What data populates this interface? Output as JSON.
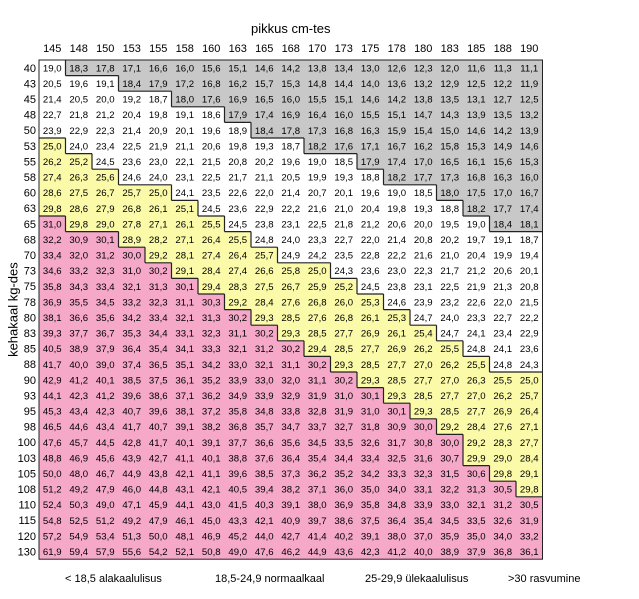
{
  "chart_data": {
    "type": "heatmap",
    "xlabel": "pikkus cm-tes",
    "ylabel": "kehakaal kg-des",
    "heights": [
      "145",
      "148",
      "150",
      "153",
      "155",
      "158",
      "160",
      "163",
      "165",
      "168",
      "170",
      "173",
      "175",
      "178",
      "180",
      "183",
      "185",
      "188",
      "190"
    ],
    "weights": [
      "40",
      "43",
      "45",
      "48",
      "50",
      "53",
      "55",
      "58",
      "60",
      "63",
      "65",
      "68",
      "70",
      "73",
      "75",
      "78",
      "80",
      "83",
      "85",
      "88",
      "90",
      "93",
      "95",
      "98",
      "100",
      "103",
      "105",
      "108",
      "110",
      "115",
      "120",
      "130"
    ],
    "bmi": [
      [
        "19,0",
        "18,3",
        "17,8",
        "17,1",
        "16,6",
        "16,0",
        "15,6",
        "15,1",
        "14,6",
        "14,2",
        "13,8",
        "13,4",
        "13,0",
        "12,6",
        "12,3",
        "12,0",
        "11,6",
        "11,3",
        "11,1"
      ],
      [
        "20,5",
        "19,6",
        "19,1",
        "18,4",
        "17,9",
        "17,2",
        "16,8",
        "16,2",
        "15,7",
        "15,3",
        "14,8",
        "14,4",
        "14,0",
        "13,6",
        "13,2",
        "12,9",
        "12,5",
        "12,2",
        "11,9"
      ],
      [
        "21,4",
        "20,5",
        "20,0",
        "19,2",
        "18,7",
        "18,0",
        "17,6",
        "16,9",
        "16,5",
        "16,0",
        "15,5",
        "15,1",
        "14,6",
        "14,2",
        "13,8",
        "13,5",
        "13,1",
        "12,7",
        "12,5"
      ],
      [
        "22,7",
        "21,8",
        "21,2",
        "20,4",
        "19,8",
        "19,1",
        "18,6",
        "17,9",
        "17,4",
        "16,9",
        "16,4",
        "16,0",
        "15,5",
        "15,1",
        "14,7",
        "14,3",
        "13,9",
        "13,5",
        "13,2"
      ],
      [
        "23,9",
        "22,9",
        "22,3",
        "21,4",
        "20,9",
        "20,1",
        "19,6",
        "18,9",
        "18,4",
        "17,8",
        "17,3",
        "16,8",
        "16,3",
        "15,9",
        "15,4",
        "15,0",
        "14,6",
        "14,2",
        "13,9"
      ],
      [
        "25,0",
        "24,0",
        "23,4",
        "22,5",
        "21,9",
        "21,1",
        "20,6",
        "19,8",
        "19,3",
        "18,7",
        "18,2",
        "17,6",
        "17,1",
        "16,7",
        "16,2",
        "15,8",
        "15,3",
        "14,9",
        "14,6"
      ],
      [
        "26,2",
        "25,2",
        "24,5",
        "23,6",
        "23,0",
        "22,1",
        "21,5",
        "20,8",
        "20,2",
        "19,6",
        "19,0",
        "18,5",
        "17,9",
        "17,4",
        "17,0",
        "16,5",
        "16,1",
        "15,6",
        "15,3"
      ],
      [
        "27,4",
        "26,3",
        "25,6",
        "24,6",
        "24,0",
        "23,1",
        "22,5",
        "21,7",
        "21,1",
        "20,5",
        "19,9",
        "19,3",
        "18,8",
        "18,2",
        "17,7",
        "17,3",
        "16,8",
        "16,3",
        "16,0"
      ],
      [
        "28,6",
        "27,5",
        "26,7",
        "25,7",
        "25,0",
        "24,1",
        "23,5",
        "22,6",
        "22,0",
        "21,4",
        "20,7",
        "20,1",
        "19,6",
        "19,0",
        "18,5",
        "18,0",
        "17,5",
        "17,0",
        "16,7"
      ],
      [
        "29,8",
        "28,6",
        "27,9",
        "26,8",
        "26,1",
        "25,1",
        "24,5",
        "23,6",
        "22,9",
        "22,2",
        "21,6",
        "21,0",
        "20,4",
        "19,8",
        "19,3",
        "18,8",
        "18,2",
        "17,7",
        "17,4"
      ],
      [
        "31,0",
        "29,8",
        "29,0",
        "27,8",
        "27,1",
        "26,1",
        "25,5",
        "24,5",
        "23,8",
        "23,1",
        "22,5",
        "21,8",
        "21,2",
        "20,6",
        "20,0",
        "19,5",
        "19,0",
        "18,4",
        "18,1"
      ],
      [
        "32,2",
        "30,9",
        "30,1",
        "28,9",
        "28,2",
        "27,1",
        "26,4",
        "25,5",
        "24,8",
        "24,0",
        "23,3",
        "22,7",
        "22,0",
        "21,4",
        "20,8",
        "20,2",
        "19,7",
        "19,1",
        "18,7"
      ],
      [
        "33,4",
        "32,0",
        "31,2",
        "30,0",
        "29,2",
        "28,1",
        "27,4",
        "26,4",
        "25,7",
        "24,9",
        "24,2",
        "23,5",
        "22,8",
        "22,2",
        "21,6",
        "21,0",
        "20,4",
        "19,9",
        "19,4"
      ],
      [
        "34,6",
        "33,2",
        "32,3",
        "31,0",
        "30,2",
        "29,1",
        "28,4",
        "27,4",
        "26,6",
        "25,8",
        "25,0",
        "24,3",
        "23,6",
        "23,0",
        "22,3",
        "21,7",
        "21,2",
        "20,6",
        "20,1"
      ],
      [
        "35,8",
        "34,3",
        "33,4",
        "32,1",
        "31,3",
        "30,1",
        "29,4",
        "28,3",
        "27,5",
        "26,7",
        "25,9",
        "25,2",
        "24,5",
        "23,8",
        "23,1",
        "22,5",
        "21,9",
        "21,3",
        "20,8"
      ],
      [
        "36,9",
        "35,5",
        "34,5",
        "33,2",
        "32,3",
        "31,1",
        "30,3",
        "29,2",
        "28,4",
        "27,6",
        "26,8",
        "26,0",
        "25,3",
        "24,6",
        "23,9",
        "23,2",
        "22,6",
        "22,0",
        "21,5"
      ],
      [
        "38,1",
        "36,6",
        "35,6",
        "34,2",
        "33,4",
        "32,1",
        "31,3",
        "30,2",
        "29,3",
        "28,5",
        "27,6",
        "26,8",
        "26,1",
        "25,3",
        "24,7",
        "24,0",
        "23,3",
        "22,7",
        "22,2"
      ],
      [
        "39,3",
        "37,7",
        "36,7",
        "35,3",
        "34,4",
        "33,1",
        "32,3",
        "31,1",
        "30,2",
        "29,3",
        "28,5",
        "27,7",
        "26,9",
        "26,1",
        "25,4",
        "24,7",
        "24,1",
        "23,4",
        "22,9"
      ],
      [
        "40,5",
        "38,9",
        "37,9",
        "36,4",
        "35,4",
        "34,1",
        "33,3",
        "32,1",
        "31,2",
        "30,2",
        "29,4",
        "28,5",
        "27,7",
        "26,9",
        "26,2",
        "25,5",
        "24,8",
        "24,1",
        "23,6"
      ],
      [
        "41,7",
        "40,0",
        "39,0",
        "37,4",
        "36,5",
        "35,1",
        "34,2",
        "33,0",
        "32,1",
        "31,1",
        "30,2",
        "29,3",
        "28,5",
        "27,7",
        "27,0",
        "26,2",
        "25,5",
        "24,8",
        "24,3"
      ],
      [
        "42,9",
        "41,2",
        "40,1",
        "38,5",
        "37,5",
        "36,1",
        "35,2",
        "33,9",
        "33,0",
        "32,0",
        "31,1",
        "30,2",
        "29,3",
        "28,5",
        "27,7",
        "27,0",
        "26,3",
        "25,5",
        "25,0"
      ],
      [
        "44,1",
        "42,3",
        "41,2",
        "39,6",
        "38,6",
        "37,1",
        "36,2",
        "34,9",
        "33,9",
        "32,9",
        "31,9",
        "31,0",
        "30,1",
        "29,3",
        "28,5",
        "27,7",
        "27,0",
        "26,2",
        "25,7"
      ],
      [
        "45,3",
        "43,4",
        "42,3",
        "40,7",
        "39,6",
        "38,1",
        "37,2",
        "35,8",
        "34,8",
        "33,8",
        "32,8",
        "31,9",
        "31,0",
        "30,1",
        "29,3",
        "28,5",
        "27,7",
        "26,9",
        "26,4"
      ],
      [
        "46,5",
        "44,6",
        "43,4",
        "41,7",
        "40,7",
        "39,1",
        "38,2",
        "36,8",
        "35,7",
        "34,7",
        "33,7",
        "32,7",
        "31,8",
        "30,9",
        "30,0",
        "29,2",
        "28,4",
        "27,6",
        "27,1"
      ],
      [
        "47,6",
        "45,7",
        "44,5",
        "42,8",
        "41,7",
        "40,1",
        "39,1",
        "37,7",
        "36,6",
        "35,6",
        "34,5",
        "33,5",
        "32,6",
        "31,7",
        "30,8",
        "30,0",
        "29,2",
        "28,3",
        "27,7"
      ],
      [
        "48,8",
        "46,9",
        "45,6",
        "43,9",
        "42,7",
        "41,1",
        "40,1",
        "38,8",
        "37,6",
        "36,4",
        "35,4",
        "34,4",
        "33,4",
        "32,5",
        "31,6",
        "30,7",
        "29,9",
        "29,0",
        "28,4"
      ],
      [
        "50,0",
        "48,0",
        "46,7",
        "44,9",
        "43,8",
        "42,1",
        "41,1",
        "39,6",
        "38,5",
        "37,3",
        "36,2",
        "35,2",
        "34,2",
        "33,3",
        "32,3",
        "31,5",
        "30,6",
        "29,8",
        "29,1"
      ],
      [
        "51,2",
        "49,2",
        "47,9",
        "46,0",
        "44,8",
        "43,1",
        "42,1",
        "40,5",
        "39,4",
        "38,2",
        "37,1",
        "36,0",
        "35,0",
        "34,0",
        "33,1",
        "32,2",
        "31,3",
        "30,5",
        "29,8"
      ],
      [
        "52,4",
        "50,3",
        "49,0",
        "47,1",
        "45,9",
        "44,1",
        "43,0",
        "41,5",
        "40,3",
        "39,1",
        "38,0",
        "36,9",
        "35,8",
        "34,8",
        "33,9",
        "33,0",
        "32,1",
        "31,2",
        "30,5"
      ],
      [
        "54,8",
        "52,5",
        "51,2",
        "49,2",
        "47,9",
        "46,1",
        "45,0",
        "43,3",
        "42,1",
        "40,9",
        "39,7",
        "38,6",
        "37,5",
        "36,4",
        "35,4",
        "34,5",
        "33,5",
        "32,6",
        "31,9"
      ],
      [
        "57,2",
        "54,9",
        "53,4",
        "51,3",
        "50,0",
        "48,1",
        "46,9",
        "45,2",
        "44,0",
        "42,7",
        "41,4",
        "40,2",
        "39,1",
        "38,0",
        "37,0",
        "35,9",
        "35,0",
        "34,0",
        "33,2"
      ],
      [
        "61,9",
        "59,4",
        "57,9",
        "55,6",
        "54,2",
        "52,1",
        "50,8",
        "49,0",
        "47,6",
        "46,2",
        "44,9",
        "43,6",
        "42,3",
        "41,2",
        "40,0",
        "38,9",
        "37,9",
        "36,8",
        "36,1"
      ]
    ],
    "legend": [
      {
        "label": "< 18,5 alakaalulisus",
        "color": "#c8c8c8"
      },
      {
        "label": "18,5-24,9 normaalkaal",
        "color": "#ffffff"
      },
      {
        "label": "25-29,9 ülekaalulisus",
        "color": "#fafaa8"
      },
      {
        "label": ">30 rasvumine",
        "color": "#f5a8c8"
      }
    ]
  }
}
